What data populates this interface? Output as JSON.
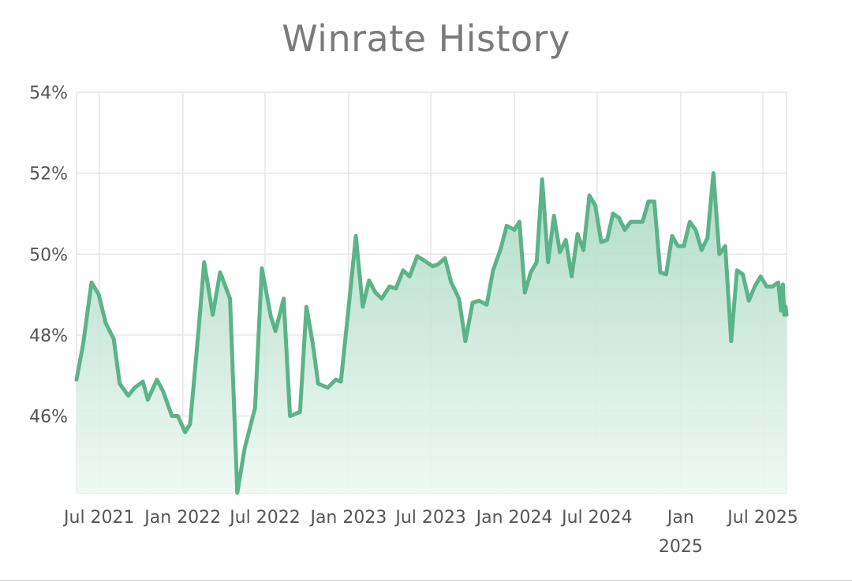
{
  "chart_data": {
    "type": "area",
    "title": "Winrate History",
    "xlabel": "",
    "ylabel": "",
    "ylim": [
      44.1,
      54
    ],
    "y_ticks": [
      {
        "value": 54,
        "label": "54%"
      },
      {
        "value": 52,
        "label": "52%"
      },
      {
        "value": 50,
        "label": "50%"
      },
      {
        "value": 48,
        "label": "48%"
      },
      {
        "value": 46,
        "label": "46%"
      }
    ],
    "xlim": [
      "2021-05-12",
      "2025-08-22"
    ],
    "x_ticks": [
      {
        "date": "2021-07-01",
        "label": [
          "Jul 2021"
        ]
      },
      {
        "date": "2022-01-01",
        "label": [
          "Jan 2022"
        ]
      },
      {
        "date": "2022-07-01",
        "label": [
          "Jul 2022"
        ]
      },
      {
        "date": "2023-01-01",
        "label": [
          "Jan 2023"
        ]
      },
      {
        "date": "2023-07-01",
        "label": [
          "Jul 2023"
        ]
      },
      {
        "date": "2024-01-01",
        "label": [
          "Jan 2024"
        ]
      },
      {
        "date": "2024-07-01",
        "label": [
          "Jul 2024"
        ]
      },
      {
        "date": "2025-01-01",
        "label": [
          "Jan",
          "2025"
        ]
      },
      {
        "date": "2025-07-01",
        "label": [
          "Jul 2025"
        ]
      }
    ],
    "grid": true,
    "legend": "none",
    "colors": {
      "line": "#5bb38a",
      "fill_top": "#a8d8c0",
      "fill_bottom": "#eef8f3",
      "grid": "#e6e6e6"
    },
    "series": [
      {
        "x": [
          "2021-05-12",
          "2021-05-27",
          "2021-06-14",
          "2021-06-30",
          "2021-07-15",
          "2021-08-02",
          "2021-08-15",
          "2021-09-03",
          "2021-09-17",
          "2021-10-05",
          "2021-10-16",
          "2021-11-05",
          "2021-11-19",
          "2021-12-08",
          "2021-12-21",
          "2022-01-06",
          "2022-01-17",
          "2022-02-06",
          "2022-02-17",
          "2022-03-08",
          "2022-03-24",
          "2022-04-15",
          "2022-05-01",
          "2022-05-17",
          "2022-06-09",
          "2022-06-24",
          "2022-07-14",
          "2022-07-24",
          "2022-08-11",
          "2022-08-25",
          "2022-09-16",
          "2022-09-30",
          "2022-10-14",
          "2022-10-26",
          "2022-11-16",
          "2022-12-04",
          "2022-12-15",
          "2023-01-04",
          "2023-01-17",
          "2023-02-01",
          "2023-02-15",
          "2023-03-01",
          "2023-03-15",
          "2023-04-01",
          "2023-04-15",
          "2023-05-01",
          "2023-05-15",
          "2023-06-01",
          "2023-06-15",
          "2023-07-05",
          "2023-07-17",
          "2023-08-01",
          "2023-08-15",
          "2023-09-01",
          "2023-09-15",
          "2023-10-01",
          "2023-10-15",
          "2023-11-01",
          "2023-11-15",
          "2023-12-01",
          "2023-12-15",
          "2024-01-01",
          "2024-01-12",
          "2024-01-24",
          "2024-02-06",
          "2024-02-19",
          "2024-03-02",
          "2024-03-15",
          "2024-03-28",
          "2024-04-10",
          "2024-04-23",
          "2024-05-06",
          "2024-05-19",
          "2024-06-01",
          "2024-06-14",
          "2024-06-27",
          "2024-07-10",
          "2024-07-23",
          "2024-08-05",
          "2024-08-18",
          "2024-08-31",
          "2024-09-13",
          "2024-09-26",
          "2024-10-09",
          "2024-10-22",
          "2024-11-04",
          "2024-11-17",
          "2024-11-30",
          "2024-12-13",
          "2024-12-26",
          "2025-01-08",
          "2025-01-21",
          "2025-02-03",
          "2025-02-16",
          "2025-03-01",
          "2025-03-14",
          "2025-03-27",
          "2025-04-09",
          "2025-04-22",
          "2025-05-05",
          "2025-05-18",
          "2025-05-31",
          "2025-06-13",
          "2025-06-26",
          "2025-07-09",
          "2025-07-22",
          "2025-08-04",
          "2025-08-10",
          "2025-08-14",
          "2025-08-17",
          "2025-08-20",
          "2025-08-22"
        ],
        "y": [
          46.9,
          47.8,
          49.3,
          49.0,
          48.3,
          47.9,
          46.8,
          46.5,
          46.7,
          46.85,
          46.4,
          46.9,
          46.6,
          46.0,
          46.0,
          45.6,
          45.8,
          48.3,
          49.8,
          48.5,
          49.55,
          48.9,
          44.1,
          45.2,
          46.2,
          49.65,
          48.45,
          48.1,
          48.9,
          46.0,
          46.1,
          48.7,
          47.8,
          46.8,
          46.7,
          46.9,
          46.85,
          49.0,
          50.45,
          48.7,
          49.35,
          49.05,
          48.9,
          49.2,
          49.15,
          49.6,
          49.45,
          49.95,
          49.85,
          49.7,
          49.75,
          49.9,
          49.3,
          48.9,
          47.85,
          48.8,
          48.85,
          48.75,
          49.6,
          50.1,
          50.7,
          50.6,
          50.8,
          49.05,
          49.55,
          49.8,
          51.85,
          49.8,
          50.95,
          50.05,
          50.35,
          49.45,
          50.5,
          50.1,
          51.45,
          51.2,
          50.3,
          50.35,
          51.0,
          50.9,
          50.6,
          50.8,
          50.8,
          50.8,
          51.3,
          51.3,
          49.55,
          49.5,
          50.45,
          50.2,
          50.2,
          50.8,
          50.6,
          50.1,
          50.4,
          52.0,
          50.0,
          50.2,
          47.85,
          49.6,
          49.5,
          48.85,
          49.2,
          49.45,
          49.2,
          49.2,
          49.3,
          48.6,
          49.25,
          48.5,
          48.7,
          48.5
        ]
      }
    ]
  }
}
